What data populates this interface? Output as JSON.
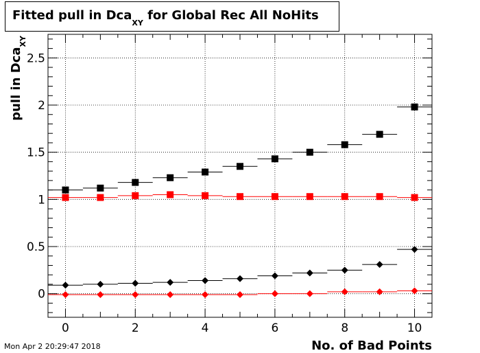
{
  "title": {
    "main": "Fitted pull in Dca",
    "sub": "XY",
    "rest": " for Global Rec All NoHits"
  },
  "timestamp": "Mon Apr  2 20:29:47 2018",
  "chart_data": {
    "type": "scatter",
    "xlabel": "No. of Bad Points",
    "ylabel": "pull in Dca",
    "ylabel_sub": "XY",
    "xlim": [
      -0.5,
      10.5
    ],
    "ylim": [
      -0.25,
      2.75
    ],
    "xticks": [
      0,
      2,
      4,
      6,
      8,
      10
    ],
    "yticks": [
      0,
      0.5,
      1,
      1.5,
      2,
      2.5
    ],
    "grid": true,
    "colors": {
      "black": "#000000",
      "red": "#ff0000"
    },
    "series": [
      {
        "marker": "square",
        "color": "#000000",
        "x": [
          0,
          1,
          2,
          3,
          4,
          5,
          6,
          7,
          8,
          9,
          10
        ],
        "y": [
          1.1,
          1.12,
          1.18,
          1.23,
          1.29,
          1.35,
          1.43,
          1.5,
          1.58,
          1.69,
          1.98
        ]
      },
      {
        "marker": "square",
        "color": "#ff0000",
        "x": [
          0,
          1,
          2,
          3,
          4,
          5,
          6,
          7,
          8,
          9,
          10
        ],
        "y": [
          1.02,
          1.02,
          1.04,
          1.05,
          1.04,
          1.03,
          1.03,
          1.03,
          1.03,
          1.03,
          1.02
        ]
      },
      {
        "marker": "diamond",
        "color": "#000000",
        "x": [
          0,
          1,
          2,
          3,
          4,
          5,
          6,
          7,
          8,
          9,
          10
        ],
        "y": [
          0.09,
          0.1,
          0.11,
          0.12,
          0.14,
          0.16,
          0.19,
          0.22,
          0.25,
          0.31,
          0.47
        ]
      },
      {
        "marker": "diamond",
        "color": "#ff0000",
        "x": [
          0,
          1,
          2,
          3,
          4,
          5,
          6,
          7,
          8,
          9,
          10
        ],
        "y": [
          -0.01,
          -0.01,
          -0.01,
          -0.01,
          -0.01,
          -0.01,
          0.0,
          0.0,
          0.02,
          0.02,
          0.03
        ]
      }
    ]
  }
}
